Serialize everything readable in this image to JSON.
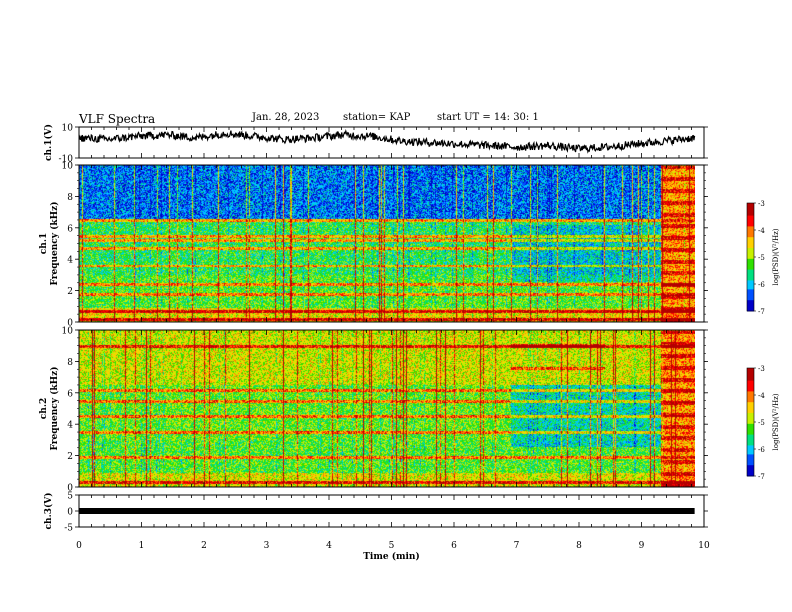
{
  "header": {
    "title": "VLF Spectra",
    "date": "Jan. 28, 2023",
    "station": "station= KAP",
    "start": "start  UT  =   14: 30: 1"
  },
  "chart_data": [
    {
      "type": "line",
      "panel": "ch1-waveform",
      "ylabel": "ch.1(V)",
      "ylim": [
        -10,
        10
      ],
      "yticks": [
        "10",
        "-10"
      ],
      "xlim": [
        0,
        9.85
      ],
      "approx_level": [
        3,
        2,
        4,
        5,
        3,
        6,
        4,
        2,
        3,
        5,
        4,
        1,
        0,
        -1,
        -2,
        -3,
        -2,
        -4,
        -3,
        -1,
        1,
        3
      ]
    },
    {
      "type": "heatmap",
      "panel": "ch1-spectrogram",
      "ylabel": "ch.1\nFrequency (kHz)",
      "ylim": [
        0,
        10
      ],
      "yticks": [
        "0",
        "2",
        "4",
        "6",
        "8",
        "10"
      ],
      "colorbar": {
        "label": "log(PSD)(V²/Hz)",
        "range": [
          -7,
          -3
        ],
        "ticks": [
          "-3",
          "-4",
          "-5",
          "-6",
          "-7"
        ]
      },
      "bands_khz": [
        0.2,
        0.7,
        1.8,
        2.4,
        3.6,
        4.7,
        5.2,
        5.5,
        6.5
      ]
    },
    {
      "type": "heatmap",
      "panel": "ch2-spectrogram",
      "ylabel": "ch.2\nFrequency (kHz)",
      "ylim": [
        0,
        10
      ],
      "yticks": [
        "0",
        "2",
        "4",
        "6",
        "8",
        "10"
      ],
      "colorbar": {
        "label": "log(PSD)(V²/Hz)",
        "range": [
          -7,
          -3
        ],
        "ticks": [
          "-3",
          "-4",
          "-5",
          "-6",
          "-7"
        ]
      },
      "bands_khz": [
        0.3,
        1.9,
        3.5,
        4.5,
        5.5,
        6.2,
        9.0
      ]
    },
    {
      "type": "line",
      "panel": "ch3-waveform",
      "ylabel": "ch.3(V)",
      "ylim": [
        -5,
        5
      ],
      "yticks": [
        "5",
        "0",
        "-5"
      ],
      "xlim": [
        0,
        9.85
      ],
      "constant_value": 0
    }
  ],
  "xaxis": {
    "label": "Time  (min)",
    "range": [
      0,
      10
    ],
    "ticks": [
      "0",
      "1",
      "2",
      "3",
      "4",
      "5",
      "6",
      "7",
      "8",
      "9",
      "10"
    ]
  },
  "colors": {
    "trace": "#000000",
    "colormap": [
      "#0000c8",
      "#0050ff",
      "#00c8ff",
      "#00e080",
      "#30e000",
      "#c8f000",
      "#ffd000",
      "#ff7800",
      "#ff0000",
      "#b40000"
    ]
  }
}
